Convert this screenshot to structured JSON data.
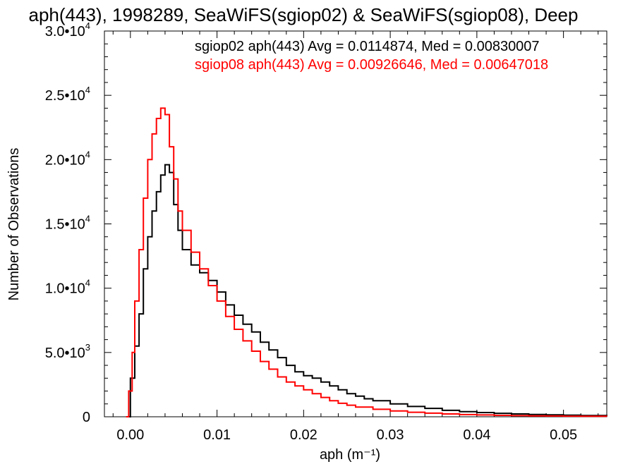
{
  "chart_data": {
    "type": "line",
    "title": "aph(443), 1998289, SeaWiFS(sgiop02) & SeaWiFS(sgiop08), Deep",
    "xlabel": "aph (m⁻¹)",
    "ylabel": "Number of Observations",
    "xlim": [
      -0.003,
      0.055
    ],
    "ylim": [
      0,
      30000
    ],
    "x_ticks": [
      {
        "value": 0.0,
        "label": "0.00"
      },
      {
        "value": 0.01,
        "label": "0.01"
      },
      {
        "value": 0.02,
        "label": "0.02"
      },
      {
        "value": 0.03,
        "label": "0.03"
      },
      {
        "value": 0.04,
        "label": "0.04"
      },
      {
        "value": 0.05,
        "label": "0.05"
      }
    ],
    "y_ticks": [
      {
        "value": 0,
        "mantissa": "0",
        "exp": ""
      },
      {
        "value": 5000,
        "mantissa": "5.0•10",
        "exp": "3"
      },
      {
        "value": 10000,
        "mantissa": "1.0•10",
        "exp": "4"
      },
      {
        "value": 15000,
        "mantissa": "1.5•10",
        "exp": "4"
      },
      {
        "value": 20000,
        "mantissa": "2.0•10",
        "exp": "4"
      },
      {
        "value": 25000,
        "mantissa": "2.5•10",
        "exp": "4"
      },
      {
        "value": 30000,
        "mantissa": "3.0•10",
        "exp": "4"
      }
    ],
    "grid": false,
    "legend_position": "top-right",
    "series": [
      {
        "name": "sgiop02",
        "color": "#000000",
        "legend": "sgiop02 aph(443) Avg = 0.0114874, Med = 0.00830007",
        "points": [
          [
            -0.0003,
            0
          ],
          [
            0.0,
            3000
          ],
          [
            0.0005,
            5500
          ],
          [
            0.001,
            8000
          ],
          [
            0.0015,
            11500
          ],
          [
            0.002,
            14000
          ],
          [
            0.0025,
            16000
          ],
          [
            0.003,
            17500
          ],
          [
            0.0035,
            18800
          ],
          [
            0.004,
            19600
          ],
          [
            0.0045,
            19000
          ],
          [
            0.005,
            16500
          ],
          [
            0.0055,
            14500
          ],
          [
            0.006,
            13000
          ],
          [
            0.007,
            11800
          ],
          [
            0.008,
            11200
          ],
          [
            0.009,
            10600
          ],
          [
            0.01,
            9700
          ],
          [
            0.011,
            8700
          ],
          [
            0.012,
            7900
          ],
          [
            0.013,
            7200
          ],
          [
            0.014,
            6600
          ],
          [
            0.015,
            5800
          ],
          [
            0.016,
            5200
          ],
          [
            0.017,
            4600
          ],
          [
            0.018,
            4000
          ],
          [
            0.019,
            3500
          ],
          [
            0.02,
            3200
          ],
          [
            0.021,
            3000
          ],
          [
            0.022,
            2700
          ],
          [
            0.023,
            2400
          ],
          [
            0.024,
            2100
          ],
          [
            0.025,
            1800
          ],
          [
            0.026,
            1600
          ],
          [
            0.027,
            1400
          ],
          [
            0.028,
            1250
          ],
          [
            0.03,
            1000
          ],
          [
            0.032,
            800
          ],
          [
            0.034,
            650
          ],
          [
            0.036,
            500
          ],
          [
            0.038,
            400
          ],
          [
            0.04,
            330
          ],
          [
            0.042,
            270
          ],
          [
            0.044,
            220
          ],
          [
            0.046,
            180
          ],
          [
            0.048,
            150
          ],
          [
            0.05,
            120
          ],
          [
            0.052,
            100
          ],
          [
            0.055,
            80
          ]
        ]
      },
      {
        "name": "sgiop08",
        "color": "#ff0000",
        "legend": "sgiop08 aph(443) Avg = 0.00926646, Med = 0.00647018",
        "points": [
          [
            -0.0005,
            0
          ],
          [
            -0.0002,
            2000
          ],
          [
            0.0002,
            5000
          ],
          [
            0.0005,
            9000
          ],
          [
            0.001,
            13000
          ],
          [
            0.0015,
            17000
          ],
          [
            0.002,
            20000
          ],
          [
            0.0025,
            22000
          ],
          [
            0.003,
            23200
          ],
          [
            0.0035,
            24000
          ],
          [
            0.004,
            23500
          ],
          [
            0.0045,
            21000
          ],
          [
            0.005,
            18500
          ],
          [
            0.0055,
            16000
          ],
          [
            0.006,
            14500
          ],
          [
            0.007,
            12800
          ],
          [
            0.008,
            11500
          ],
          [
            0.009,
            10200
          ],
          [
            0.01,
            9000
          ],
          [
            0.011,
            7800
          ],
          [
            0.012,
            6800
          ],
          [
            0.013,
            5900
          ],
          [
            0.014,
            5100
          ],
          [
            0.015,
            4300
          ],
          [
            0.016,
            3700
          ],
          [
            0.017,
            3100
          ],
          [
            0.018,
            2700
          ],
          [
            0.019,
            2400
          ],
          [
            0.02,
            2100
          ],
          [
            0.021,
            1800
          ],
          [
            0.022,
            1500
          ],
          [
            0.023,
            1250
          ],
          [
            0.024,
            1050
          ],
          [
            0.025,
            900
          ],
          [
            0.026,
            750
          ],
          [
            0.028,
            580
          ],
          [
            0.03,
            450
          ],
          [
            0.032,
            350
          ],
          [
            0.034,
            280
          ],
          [
            0.036,
            220
          ],
          [
            0.038,
            170
          ],
          [
            0.04,
            140
          ],
          [
            0.042,
            110
          ],
          [
            0.044,
            90
          ],
          [
            0.046,
            70
          ],
          [
            0.048,
            60
          ],
          [
            0.05,
            50
          ],
          [
            0.052,
            40
          ],
          [
            0.055,
            30
          ]
        ]
      }
    ]
  }
}
